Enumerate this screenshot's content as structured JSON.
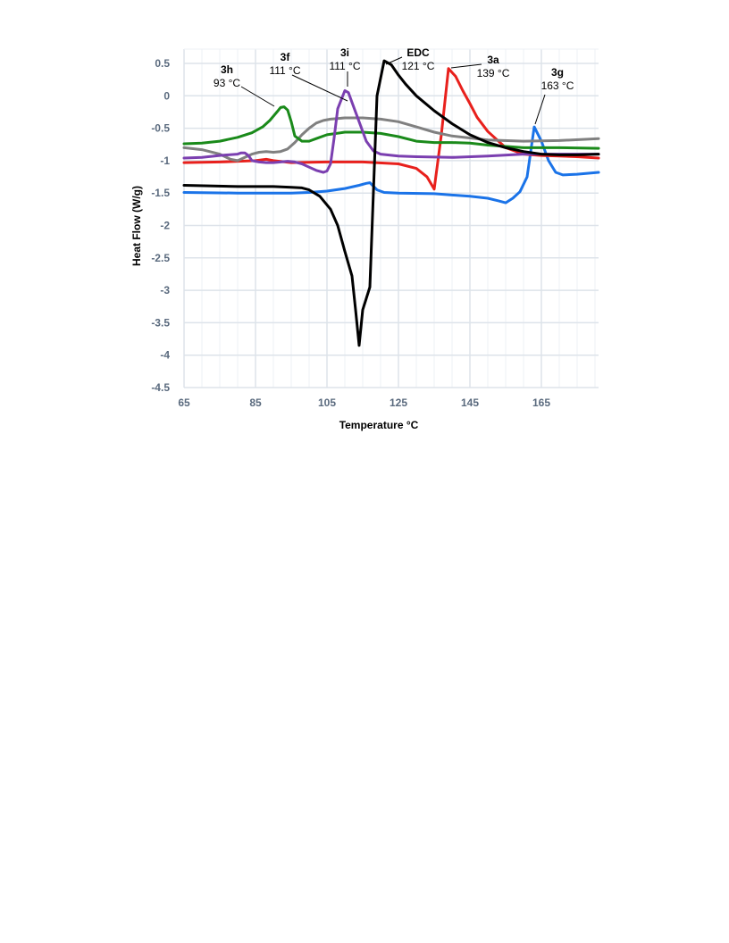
{
  "chart_data": {
    "type": "line",
    "xlabel": "Temperature °C",
    "ylabel": "Heat Flow (W/g)",
    "xlim": [
      65,
      181
    ],
    "ylim": [
      -4.5,
      0.6
    ],
    "xticks": [
      65,
      85,
      105,
      125,
      145,
      165
    ],
    "yticks": [
      0.5,
      0,
      -0.5,
      -1,
      -1.5,
      -2,
      -2.5,
      -3,
      -3.5,
      -4,
      -4.5
    ],
    "ytick_labels": [
      "0.5",
      "0",
      "-0.5",
      "-1",
      "-1.5",
      "-2",
      "-2.5",
      "-3",
      "-3.5",
      "-4",
      "-4.5"
    ],
    "grid": true,
    "series": [
      {
        "name": "3g",
        "color": "#1a73e8",
        "x": [
          65,
          80,
          95,
          100,
          105,
          110,
          114,
          116,
          117,
          119,
          121,
          125,
          135,
          145,
          150,
          153,
          155,
          157,
          159,
          161,
          163,
          165,
          167,
          169,
          171,
          175,
          181
        ],
        "y": [
          -1.49,
          -1.5,
          -1.5,
          -1.49,
          -1.47,
          -1.43,
          -1.38,
          -1.35,
          -1.34,
          -1.45,
          -1.49,
          -1.5,
          -1.51,
          -1.55,
          -1.58,
          -1.62,
          -1.65,
          -1.58,
          -1.48,
          -1.25,
          -0.48,
          -0.7,
          -1.0,
          -1.18,
          -1.22,
          -1.21,
          -1.18
        ]
      },
      {
        "name": "3a",
        "color": "#e8201c",
        "x": [
          65,
          75,
          85,
          88,
          90,
          95,
          105,
          115,
          125,
          130,
          133,
          135,
          137,
          139,
          141,
          143,
          145,
          147,
          150,
          155,
          160,
          165,
          170,
          175,
          181
        ],
        "y": [
          -1.03,
          -1.02,
          -1.0,
          -0.98,
          -1.0,
          -1.03,
          -1.02,
          -1.02,
          -1.05,
          -1.12,
          -1.25,
          -1.44,
          -0.6,
          0.42,
          0.3,
          0.08,
          -0.12,
          -0.33,
          -0.55,
          -0.8,
          -0.9,
          -0.92,
          -0.93,
          -0.94,
          -0.96
        ]
      },
      {
        "name": "3f",
        "color": "#808080",
        "x": [
          65,
          70,
          75,
          78,
          80,
          82,
          84,
          86,
          88,
          90,
          92,
          94,
          96,
          98,
          100,
          102,
          104,
          106,
          108,
          110,
          115,
          120,
          125,
          130,
          135,
          140,
          150,
          160,
          170,
          181
        ],
        "y": [
          -0.8,
          -0.83,
          -0.9,
          -0.98,
          -1.0,
          -0.95,
          -0.9,
          -0.87,
          -0.86,
          -0.87,
          -0.86,
          -0.82,
          -0.72,
          -0.6,
          -0.5,
          -0.42,
          -0.38,
          -0.36,
          -0.35,
          -0.34,
          -0.34,
          -0.36,
          -0.4,
          -0.48,
          -0.56,
          -0.62,
          -0.68,
          -0.7,
          -0.69,
          -0.66
        ]
      },
      {
        "name": "3h",
        "color": "#1a8a1a",
        "x": [
          65,
          70,
          75,
          80,
          84,
          87,
          89,
          91,
          92,
          93,
          94,
          95,
          96,
          98,
          100,
          102,
          105,
          110,
          115,
          120,
          125,
          130,
          135,
          140,
          145,
          150,
          160,
          170,
          181
        ],
        "y": [
          -0.74,
          -0.73,
          -0.7,
          -0.64,
          -0.57,
          -0.48,
          -0.38,
          -0.25,
          -0.18,
          -0.17,
          -0.22,
          -0.4,
          -0.62,
          -0.7,
          -0.7,
          -0.66,
          -0.6,
          -0.56,
          -0.56,
          -0.58,
          -0.63,
          -0.7,
          -0.72,
          -0.72,
          -0.73,
          -0.76,
          -0.8,
          -0.8,
          -0.81
        ]
      },
      {
        "name": "3i",
        "color": "#7b3fb0",
        "x": [
          65,
          70,
          75,
          80,
          81,
          82,
          83,
          84,
          86,
          88,
          90,
          92,
          94,
          96,
          98,
          100,
          102,
          104,
          105,
          106,
          107,
          108,
          110,
          111,
          112,
          114,
          116,
          118,
          120,
          125,
          130,
          140,
          150,
          160,
          170,
          181
        ],
        "y": [
          -0.96,
          -0.95,
          -0.92,
          -0.9,
          -0.88,
          -0.88,
          -0.92,
          -1.0,
          -1.02,
          -1.03,
          -1.03,
          -1.02,
          -1.01,
          -1.02,
          -1.05,
          -1.1,
          -1.15,
          -1.18,
          -1.16,
          -1.05,
          -0.65,
          -0.2,
          0.08,
          0.05,
          -0.1,
          -0.4,
          -0.7,
          -0.85,
          -0.9,
          -0.93,
          -0.94,
          -0.95,
          -0.93,
          -0.9,
          -0.9,
          -0.9
        ]
      },
      {
        "name": "EDC",
        "color": "#000000",
        "x": [
          65,
          80,
          90,
          95,
          98,
          100,
          103,
          106,
          108,
          110,
          112,
          113,
          114,
          115,
          117,
          119,
          121,
          123,
          125,
          127,
          130,
          135,
          140,
          145,
          150,
          155,
          160,
          165,
          170,
          175,
          181
        ],
        "y": [
          -1.38,
          -1.4,
          -1.4,
          -1.41,
          -1.42,
          -1.45,
          -1.55,
          -1.75,
          -2.0,
          -2.4,
          -2.78,
          -3.3,
          -3.85,
          -3.3,
          -2.95,
          0.0,
          0.54,
          0.48,
          0.32,
          0.18,
          0.0,
          -0.23,
          -0.43,
          -0.6,
          -0.72,
          -0.8,
          -0.86,
          -0.9,
          -0.91,
          -0.91,
          -0.9
        ]
      }
    ],
    "annotations": [
      {
        "series": "3h",
        "name": "3h",
        "temp": "93 °C",
        "x": 93,
        "y": -0.17
      },
      {
        "series": "3f",
        "name": "3f",
        "temp": "111  °C",
        "x": 111,
        "y": -0.34
      },
      {
        "series": "3i",
        "name": "3i",
        "temp": "111  °C",
        "x": 111,
        "y": 0.08
      },
      {
        "series": "EDC",
        "name": "EDC",
        "temp": "121 °C",
        "x": 121,
        "y": 0.54
      },
      {
        "series": "3a",
        "name": "3a",
        "temp": "139 °C",
        "x": 139,
        "y": 0.42
      },
      {
        "series": "3g",
        "name": "3g",
        "temp": "163 °C",
        "x": 163,
        "y": -0.48
      }
    ]
  }
}
